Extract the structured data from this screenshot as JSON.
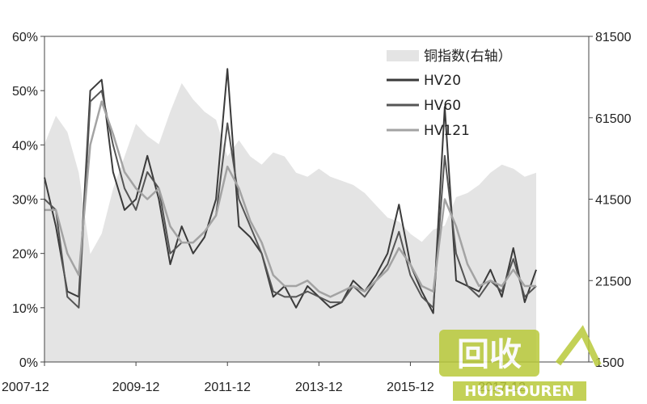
{
  "chart_data": {
    "type": "line",
    "title": "",
    "xlabel": "",
    "ylabel": "",
    "x_ticks": [
      "2007-12",
      "2009-12",
      "2011-12",
      "2013-12",
      "2015-12",
      "2017-12"
    ],
    "y_left_ticks": [
      "0%",
      "10%",
      "20%",
      "30%",
      "40%",
      "50%",
      "60%"
    ],
    "y_right_ticks": [
      "1500",
      "21500",
      "41500",
      "61500",
      "81500"
    ],
    "y_left_range": [
      0,
      60
    ],
    "y_right_range": [
      1500,
      81500
    ],
    "legend_position": "top-right",
    "grid": false,
    "x_dates": [
      "2007-12",
      "2008-03",
      "2008-06",
      "2008-09",
      "2008-12",
      "2009-03",
      "2009-06",
      "2009-09",
      "2009-12",
      "2010-03",
      "2010-06",
      "2010-09",
      "2010-12",
      "2011-03",
      "2011-06",
      "2011-09",
      "2011-12",
      "2012-03",
      "2012-06",
      "2012-09",
      "2012-12",
      "2013-03",
      "2013-06",
      "2013-09",
      "2013-12",
      "2014-03",
      "2014-06",
      "2014-09",
      "2014-12",
      "2015-03",
      "2015-06",
      "2015-09",
      "2015-12",
      "2016-03",
      "2016-06",
      "2016-09",
      "2016-12",
      "2017-03",
      "2017-06",
      "2017-09",
      "2017-12",
      "2018-03",
      "2018-06",
      "2018-09"
    ],
    "series": [
      {
        "name": "铜指数(右轴）",
        "axis": "right",
        "kind": "area",
        "color": "#e4e4e4",
        "values": [
          55000,
          62000,
          58000,
          48000,
          28000,
          33000,
          44000,
          52000,
          60000,
          57000,
          55000,
          63000,
          70000,
          66000,
          63000,
          61000,
          52000,
          56000,
          52000,
          50000,
          53000,
          52000,
          48000,
          47000,
          49000,
          47000,
          46000,
          45000,
          43000,
          40000,
          37000,
          36000,
          33000,
          31000,
          34000,
          35000,
          42000,
          43000,
          45000,
          48000,
          50000,
          49000,
          47000,
          48000
        ]
      },
      {
        "name": "HV20",
        "axis": "left",
        "kind": "line",
        "color": "#3a3a3a",
        "values": [
          34,
          25,
          13,
          12,
          50,
          52,
          35,
          28,
          30,
          38,
          30,
          18,
          25,
          20,
          23,
          30,
          54,
          25,
          23,
          20,
          12,
          14,
          10,
          14,
          12,
          10,
          11,
          15,
          13,
          16,
          20,
          29,
          18,
          13,
          9,
          47,
          15,
          14,
          13,
          17,
          12,
          21,
          11,
          17
        ]
      },
      {
        "name": "HV60",
        "axis": "left",
        "kind": "line",
        "color": "#555555",
        "values": [
          30,
          28,
          12,
          10,
          48,
          50,
          40,
          32,
          28,
          35,
          32,
          20,
          22,
          22,
          24,
          27,
          44,
          30,
          25,
          20,
          13,
          12,
          12,
          13,
          12,
          11,
          11,
          14,
          12,
          15,
          18,
          24,
          16,
          12,
          10,
          38,
          20,
          14,
          12,
          15,
          13,
          19,
          12,
          14
        ]
      },
      {
        "name": "HV121",
        "axis": "left",
        "kind": "line",
        "color": "#a3a3a3",
        "values": [
          28,
          28,
          20,
          16,
          40,
          48,
          42,
          35,
          32,
          30,
          32,
          25,
          22,
          22,
          24,
          27,
          36,
          32,
          26,
          22,
          16,
          14,
          14,
          15,
          13,
          12,
          13,
          14,
          13,
          15,
          17,
          21,
          18,
          14,
          13,
          30,
          25,
          18,
          14,
          15,
          14,
          17,
          14,
          14
        ]
      }
    ]
  },
  "watermark": {
    "logo_text": "回收",
    "brand_text": "HUISHOUREN"
  }
}
